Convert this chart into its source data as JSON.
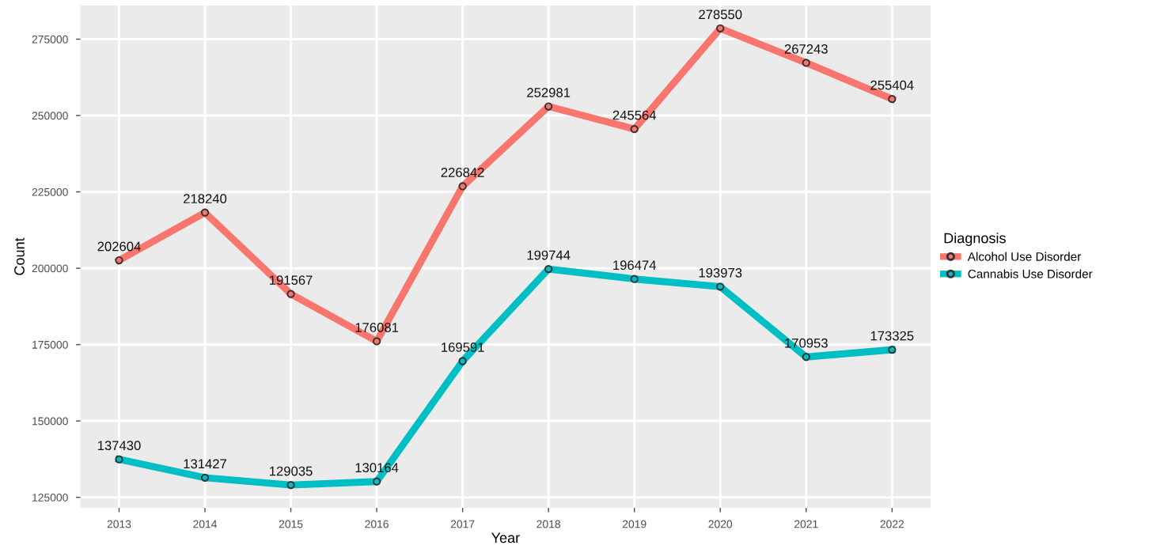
{
  "chart_data": {
    "type": "line",
    "xlabel": "Year",
    "ylabel": "Count",
    "legend_title": "Diagnosis",
    "x": [
      2013,
      2014,
      2015,
      2016,
      2017,
      2018,
      2019,
      2020,
      2021,
      2022
    ],
    "series": [
      {
        "name": "Alcohol Use Disorder",
        "color": "#f8766d",
        "values": [
          202604,
          218240,
          191567,
          176081,
          226842,
          252981,
          245564,
          278550,
          267243,
          255404
        ]
      },
      {
        "name": "Cannabis Use Disorder",
        "color": "#00bfc4",
        "values": [
          137430,
          131427,
          129035,
          130164,
          169591,
          199744,
          196474,
          193973,
          170953,
          173325
        ]
      }
    ],
    "xlim": [
      2012.55,
      2022.45
    ],
    "xticks": [
      2013,
      2014,
      2015,
      2016,
      2017,
      2018,
      2019,
      2020,
      2021,
      2022
    ],
    "ylim": [
      121559,
      286026
    ],
    "yticks": [
      125000,
      150000,
      175000,
      200000,
      225000,
      250000,
      275000
    ],
    "grid": true,
    "legend": "right",
    "marker": "circle",
    "line_style": "solid",
    "data_labels": true
  }
}
